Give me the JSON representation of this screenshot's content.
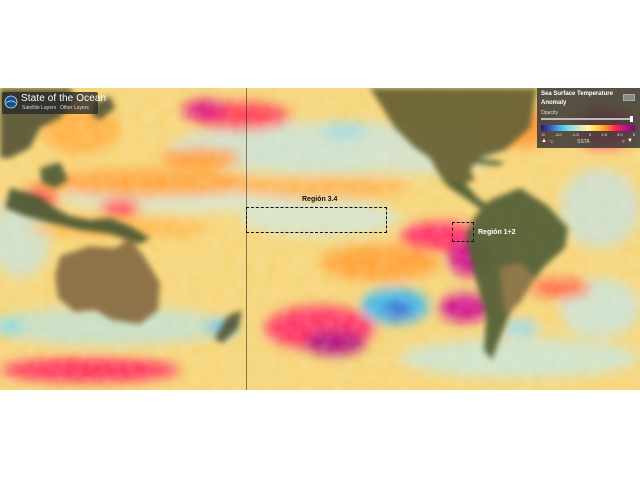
{
  "app": {
    "title": "State of the Ocean",
    "links": [
      "Satellite Layers",
      "Other Layers"
    ]
  },
  "legend": {
    "title_line1": "Sea Surface Temperature",
    "title_line2": "Anomaly",
    "opacity_label": "Opacity",
    "tick_labels": [
      "-5",
      "-3.0",
      "-1.5",
      "0",
      "1.5",
      "3.0",
      "5"
    ],
    "units_label": "SSTA",
    "unit_c": "°C",
    "unit_f": "°F",
    "colors": [
      "#2a1a6b",
      "#3a55c8",
      "#3fb8e8",
      "#c8e8c8",
      "#fff2a0",
      "#ffd040",
      "#ff8a1a",
      "#ff2050",
      "#c0108a",
      "#7a0a6a"
    ]
  },
  "regions": {
    "nino34_label": "Región 3.4",
    "nino12_label": "Región 1+2"
  },
  "icons": {
    "logo": "globe-icon",
    "warning": "warning-icon",
    "collapse": "triangle-down-icon"
  },
  "colors": {
    "ocean_warm": "#ffd040",
    "ocean_hot": "#ff2050",
    "ocean_very_hot": "#c0108a",
    "ocean_neutral": "#c8ddc0",
    "ocean_cool": "#3fb8e8",
    "ocean_cold": "#3a55c8",
    "land": "#5b5a3a"
  }
}
